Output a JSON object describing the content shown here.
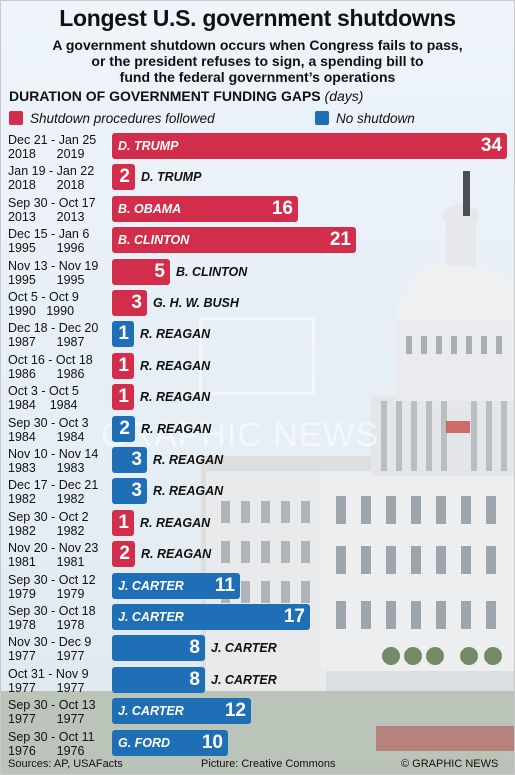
{
  "header": {
    "title": "Longest U.S. government shutdowns",
    "subtitle_lines": [
      "A government shutdown occurs when Congress fails to pass,",
      "or the president refuses to sign, a spending bill to",
      "fund the federal government’s operations"
    ]
  },
  "chart_heading": {
    "label": "DURATION OF GOVERNMENT FUNDING GAPS",
    "units": "(days)"
  },
  "legend": [
    {
      "label": "Shutdown procedures followed",
      "color": "#d22d4a"
    },
    {
      "label": "No shutdown",
      "color": "#1f6fb6"
    }
  ],
  "chart_data": {
    "type": "bar",
    "orientation": "horizontal",
    "title": "DURATION OF GOVERNMENT FUNDING GAPS",
    "units": "days",
    "series": [
      {
        "name": "Shutdown procedures followed",
        "color": "#d22d4a"
      },
      {
        "name": "No shutdown",
        "color": "#1f6fb6"
      }
    ],
    "rows": [
      {
        "dates": "Dec 21 - Jan 25\n2018      2019",
        "president": "D. TRUMP",
        "days": 34,
        "series": "Shutdown procedures followed"
      },
      {
        "dates": "Jan 19 - Jan 22\n2018      2018",
        "president": "D. TRUMP",
        "days": 2,
        "series": "Shutdown procedures followed"
      },
      {
        "dates": "Sep 30 - Oct 17\n2013      2013",
        "president": "B. OBAMA",
        "days": 16,
        "series": "Shutdown procedures followed"
      },
      {
        "dates": "Dec 15 - Jan 6\n1995      1996",
        "president": "B. CLINTON",
        "days": 21,
        "series": "Shutdown procedures followed"
      },
      {
        "dates": "Nov 13 - Nov 19\n1995      1995",
        "president": "B. CLINTON",
        "days": 5,
        "series": "Shutdown procedures followed"
      },
      {
        "dates": "Oct 5 - Oct 9\n1990   1990",
        "president": "G. H. W. BUSH",
        "days": 3,
        "series": "Shutdown procedures followed"
      },
      {
        "dates": "Dec 18 - Dec 20\n1987      1987",
        "president": "R. REAGAN",
        "days": 1,
        "series": "No shutdown"
      },
      {
        "dates": "Oct 16 - Oct 18\n1986      1986",
        "president": "R. REAGAN",
        "days": 1,
        "series": "Shutdown procedures followed"
      },
      {
        "dates": "Oct 3 - Oct 5\n1984    1984",
        "president": "R. REAGAN",
        "days": 1,
        "series": "Shutdown procedures followed"
      },
      {
        "dates": "Sep 30 - Oct 3\n1984      1984",
        "president": "R. REAGAN",
        "days": 2,
        "series": "No shutdown"
      },
      {
        "dates": "Nov 10 - Nov 14\n1983      1983",
        "president": "R. REAGAN",
        "days": 3,
        "series": "No shutdown"
      },
      {
        "dates": "Dec 17 - Dec 21\n1982      1982",
        "president": "R. REAGAN",
        "days": 3,
        "series": "No shutdown"
      },
      {
        "dates": "Sep 30 - Oct 2\n1982      1982",
        "president": "R. REAGAN",
        "days": 1,
        "series": "Shutdown procedures followed"
      },
      {
        "dates": "Nov 20 - Nov 23\n1981      1981",
        "president": "R. REAGAN",
        "days": 2,
        "series": "Shutdown procedures followed"
      },
      {
        "dates": "Sep 30 - Oct 12\n1979      1979",
        "president": "J. CARTER",
        "days": 11,
        "series": "No shutdown"
      },
      {
        "dates": "Sep 30 - Oct 18\n1978      1978",
        "president": "J. CARTER",
        "days": 17,
        "series": "No shutdown"
      },
      {
        "dates": "Nov 30 - Dec 9\n1977      1977",
        "president": "J. CARTER",
        "days": 8,
        "series": "No shutdown"
      },
      {
        "dates": "Oct 31 - Nov 9\n1977      1977",
        "president": "J. CARTER",
        "days": 8,
        "series": "No shutdown"
      },
      {
        "dates": "Sep 30 - Oct 13\n1977      1977",
        "president": "J. CARTER",
        "days": 12,
        "series": "No shutdown"
      },
      {
        "dates": "Sep 30 - Oct 11\n1976      1976",
        "president": "G. FORD",
        "days": 10,
        "series": "No shutdown"
      }
    ]
  },
  "watermark": "GRAPHIC NEWS",
  "footer": {
    "sources": "Sources: AP, USAFacts",
    "picture": "Picture: Creative Commons",
    "credit": "© GRAPHIC NEWS"
  }
}
